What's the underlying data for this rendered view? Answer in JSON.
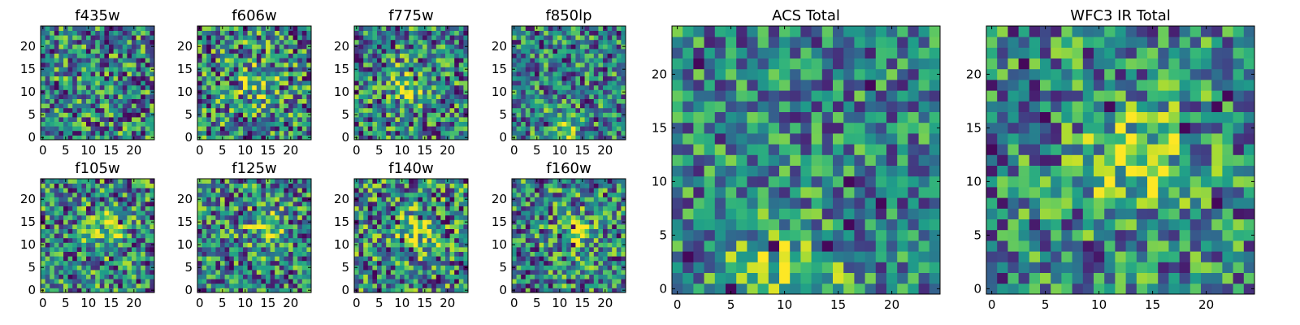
{
  "chart_data": [
    {
      "type": "heatmap",
      "title": "f435w",
      "colormap": "viridis",
      "xlim": [
        0,
        24
      ],
      "ylim": [
        0,
        24
      ],
      "xticks": [
        0,
        5,
        10,
        15,
        20
      ],
      "yticks": [
        0,
        5,
        10,
        15,
        20
      ],
      "hotspot": null,
      "contrast": 0.55
    },
    {
      "type": "heatmap",
      "title": "f606w",
      "colormap": "viridis",
      "xlim": [
        0,
        24
      ],
      "ylim": [
        0,
        24
      ],
      "xticks": [
        0,
        5,
        10,
        15,
        20
      ],
      "yticks": [
        0,
        5,
        10,
        15,
        20
      ],
      "hotspot": [
        13,
        12
      ],
      "contrast": 0.6
    },
    {
      "type": "heatmap",
      "title": "f775w",
      "colormap": "viridis",
      "xlim": [
        0,
        24
      ],
      "ylim": [
        0,
        24
      ],
      "xticks": [
        0,
        5,
        10,
        15,
        20
      ],
      "yticks": [
        0,
        5,
        10,
        15,
        20
      ],
      "hotspot": [
        12,
        12
      ],
      "contrast": 0.55
    },
    {
      "type": "heatmap",
      "title": "f850lp",
      "colormap": "viridis",
      "xlim": [
        0,
        24
      ],
      "ylim": [
        0,
        24
      ],
      "xticks": [
        0,
        5,
        10,
        15,
        20
      ],
      "yticks": [
        0,
        5,
        10,
        15,
        20
      ],
      "hotspot": [
        10,
        1
      ],
      "contrast": 0.5
    },
    {
      "type": "heatmap",
      "title": "f105w",
      "colormap": "viridis",
      "xlim": [
        0,
        24
      ],
      "ylim": [
        0,
        24
      ],
      "xticks": [
        0,
        5,
        10,
        15,
        20
      ],
      "yticks": [
        0,
        5,
        10,
        15,
        20
      ],
      "hotspot": [
        14,
        13
      ],
      "contrast": 0.55
    },
    {
      "type": "heatmap",
      "title": "f125w",
      "colormap": "viridis",
      "xlim": [
        0,
        24
      ],
      "ylim": [
        0,
        24
      ],
      "xticks": [
        0,
        5,
        10,
        15,
        20
      ],
      "yticks": [
        0,
        5,
        10,
        15,
        20
      ],
      "hotspot": [
        15,
        14
      ],
      "contrast": 0.55
    },
    {
      "type": "heatmap",
      "title": "f140w",
      "colormap": "viridis",
      "xlim": [
        0,
        24
      ],
      "ylim": [
        0,
        24
      ],
      "xticks": [
        0,
        5,
        10,
        15,
        20
      ],
      "yticks": [
        0,
        5,
        10,
        15,
        20
      ],
      "hotspot": [
        14,
        13
      ],
      "contrast": 0.6
    },
    {
      "type": "heatmap",
      "title": "f160w",
      "colormap": "viridis",
      "xlim": [
        0,
        24
      ],
      "ylim": [
        0,
        24
      ],
      "xticks": [
        0,
        5,
        10,
        15,
        20
      ],
      "yticks": [
        0,
        5,
        10,
        15,
        20
      ],
      "hotspot": [
        14,
        13
      ],
      "contrast": 0.55
    },
    {
      "type": "heatmap",
      "title": "ACS Total",
      "colormap": "viridis",
      "xlim": [
        0,
        24
      ],
      "ylim": [
        0,
        24
      ],
      "xticks": [
        0,
        5,
        10,
        15,
        20
      ],
      "yticks": [
        0,
        5,
        10,
        15,
        20
      ],
      "hotspot": [
        10,
        1
      ],
      "contrast": 0.45
    },
    {
      "type": "heatmap",
      "title": "WFC3 IR Total",
      "colormap": "viridis",
      "xlim": [
        0,
        24
      ],
      "ylim": [
        0,
        24
      ],
      "xticks": [
        0,
        5,
        10,
        15,
        20
      ],
      "yticks": [
        0,
        5,
        10,
        15,
        20
      ],
      "hotspot": [
        14,
        12
      ],
      "contrast": 0.5
    }
  ]
}
